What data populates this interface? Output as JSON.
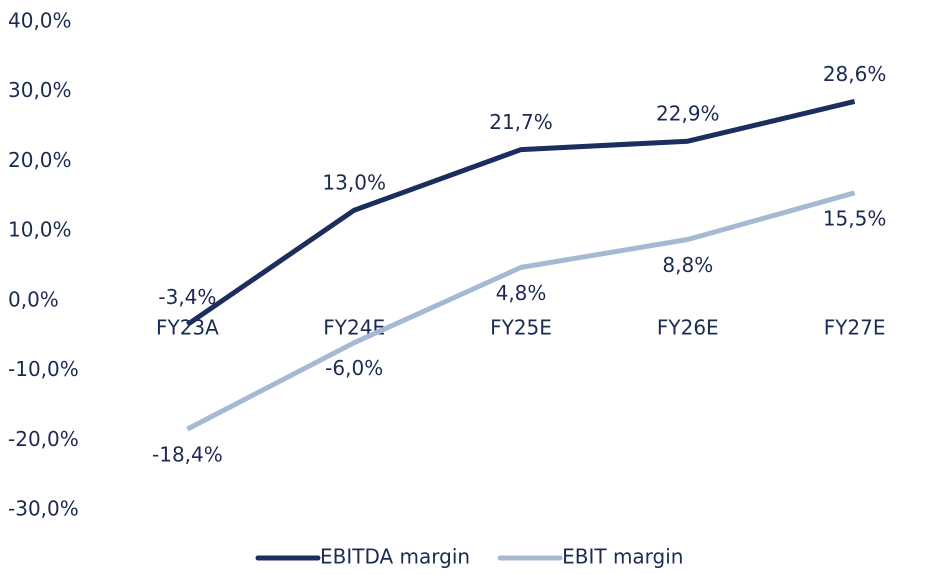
{
  "chart_data": {
    "type": "line",
    "categories": [
      "FY23A",
      "FY24E",
      "FY25E",
      "FY26E",
      "FY27E"
    ],
    "series": [
      {
        "name": "EBITDA margin",
        "color": "#1b2e5e",
        "values": [
          -3.4,
          13.0,
          21.7,
          22.9,
          28.6
        ],
        "value_labels": [
          "-3,4%",
          "13,0%",
          "21,7%",
          "22,9%",
          "28,6%"
        ]
      },
      {
        "name": "EBIT margin",
        "color": "#a6b9d3",
        "values": [
          -18.4,
          -6.0,
          4.8,
          8.8,
          15.5
        ],
        "value_labels": [
          "-18,4%",
          "-6,0%",
          "4,8%",
          "8,8%",
          "15,5%"
        ]
      }
    ],
    "ylim": [
      -30,
      40
    ],
    "yticks": [
      {
        "value": -30,
        "label": "-30,0%"
      },
      {
        "value": -20,
        "label": "-20,0%"
      },
      {
        "value": -10,
        "label": "-10,0%"
      },
      {
        "value": 0,
        "label": "0,0%"
      },
      {
        "value": 10,
        "label": "10,0%"
      },
      {
        "value": 20,
        "label": "20,0%"
      },
      {
        "value": 30,
        "label": "30,0%"
      },
      {
        "value": 40,
        "label": "40,0%"
      }
    ],
    "grid": false,
    "legend": "bottom"
  }
}
